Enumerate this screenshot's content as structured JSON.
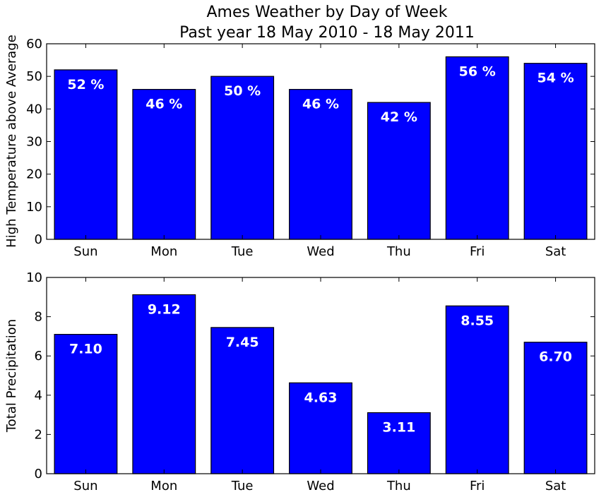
{
  "figure": {
    "title_line1": "Ames Weather by Day of Week",
    "title_line2": "Past year 18 May 2010 - 18 May 2011"
  },
  "colors": {
    "bar_fill": "#0000ff",
    "bar_edge": "#000000",
    "label_text": "#ffffff",
    "background": "#ffffff"
  },
  "chart_data": [
    {
      "type": "bar",
      "title": "Ames Weather by Day of Week",
      "subtitle": "Past year 18 May 2010 - 18 May 2011",
      "categories": [
        "Sun",
        "Mon",
        "Tue",
        "Wed",
        "Thu",
        "Fri",
        "Sat"
      ],
      "values": [
        52,
        46,
        50,
        46,
        42,
        56,
        54
      ],
      "value_labels": [
        "52 %",
        "46 %",
        "50 %",
        "46 %",
        "42 %",
        "56 %",
        "54 %"
      ],
      "ylabel": "High Temperature above Average",
      "ylim": [
        0,
        60
      ],
      "yticks": [
        0,
        10,
        20,
        30,
        40,
        50,
        60
      ],
      "grid": false
    },
    {
      "type": "bar",
      "categories": [
        "Sun",
        "Mon",
        "Tue",
        "Wed",
        "Thu",
        "Fri",
        "Sat"
      ],
      "values": [
        7.1,
        9.12,
        7.45,
        4.63,
        3.11,
        8.55,
        6.7
      ],
      "value_labels": [
        "7.10",
        "9.12",
        "7.45",
        "4.63",
        "3.11",
        "8.55",
        "6.70"
      ],
      "ylabel": "Total Precipitation",
      "ylim": [
        0,
        10
      ],
      "yticks": [
        0,
        2,
        4,
        6,
        8,
        10
      ],
      "grid": false
    }
  ]
}
